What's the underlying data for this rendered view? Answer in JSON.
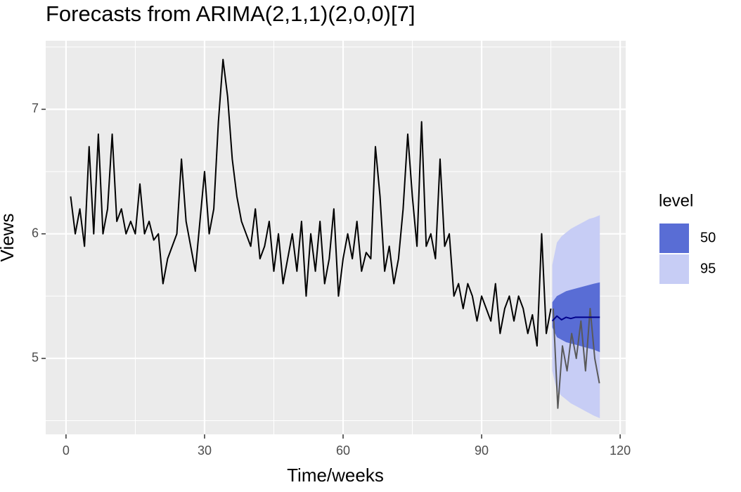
{
  "chart_data": {
    "type": "line",
    "title": "Forecasts from ARIMA(2,1,1)(2,0,0)[7]",
    "x_label": "Time/weeks",
    "y_label": "Views",
    "xlim": [
      -4.4,
      121.2
    ],
    "ylim": [
      4.39,
      7.55
    ],
    "xticks": [
      0,
      30,
      60,
      90,
      120
    ],
    "yticks": [
      5,
      6,
      7
    ],
    "xminor": [
      15,
      45,
      75,
      105
    ],
    "yminor": [
      4.5,
      5.5,
      6.5,
      7.5
    ],
    "grid": true,
    "legend_title": "level",
    "legend_position": "right",
    "bands": [
      {
        "name": "95",
        "color": "#c7cdf5",
        "x": [
          105.3,
          106.3,
          107.3,
          108.3,
          109.3,
          110.3,
          111.3,
          112.3,
          113.3,
          114.3,
          115.6
        ],
        "lower": [
          4.9,
          4.74,
          4.7,
          4.67,
          4.64,
          4.62,
          4.6,
          4.58,
          4.56,
          4.54,
          4.52
        ],
        "upper": [
          5.75,
          5.93,
          5.98,
          6.01,
          6.04,
          6.06,
          6.08,
          6.1,
          6.12,
          6.13,
          6.15
        ]
      },
      {
        "name": "50",
        "color": "#596dd5",
        "x": [
          105.3,
          106.3,
          107.3,
          108.3,
          109.3,
          110.3,
          111.3,
          112.3,
          113.3,
          114.3,
          115.6
        ],
        "lower": [
          5.25,
          5.17,
          5.15,
          5.13,
          5.12,
          5.11,
          5.1,
          5.09,
          5.08,
          5.07,
          5.05
        ],
        "upper": [
          5.45,
          5.5,
          5.52,
          5.54,
          5.55,
          5.56,
          5.57,
          5.58,
          5.59,
          5.6,
          5.61
        ]
      }
    ],
    "series": [
      {
        "color": "#000000",
        "x": [
          1,
          2,
          3,
          4,
          5,
          6,
          7,
          8,
          9,
          10,
          11,
          12,
          13,
          14,
          15,
          16,
          17,
          18,
          19,
          20,
          21,
          22,
          23,
          24,
          25,
          26,
          27,
          28,
          29,
          30,
          31,
          32,
          33,
          34,
          35,
          36,
          37,
          38,
          39,
          40,
          41,
          42,
          43,
          44,
          45,
          46,
          47,
          48,
          49,
          50,
          51,
          52,
          53,
          54,
          55,
          56,
          57,
          58,
          59,
          60,
          61,
          62,
          63,
          64,
          65,
          66,
          67,
          68,
          69,
          70,
          71,
          72,
          73,
          74,
          75,
          76,
          77,
          78,
          79,
          80,
          81,
          82,
          83,
          84,
          85,
          86,
          87,
          88,
          89,
          90,
          91,
          92,
          93,
          94,
          95,
          96,
          97,
          98,
          99,
          100,
          101,
          102,
          103,
          104,
          105
        ],
        "values": [
          6.3,
          6.0,
          6.2,
          5.9,
          6.7,
          6.0,
          6.8,
          6.0,
          6.2,
          6.8,
          6.1,
          6.2,
          6.0,
          6.1,
          6.0,
          6.4,
          6.0,
          6.1,
          5.95,
          6.0,
          5.6,
          5.8,
          5.9,
          6.0,
          6.6,
          6.1,
          5.9,
          5.7,
          6.1,
          6.5,
          6.0,
          6.2,
          6.9,
          7.4,
          7.1,
          6.6,
          6.3,
          6.1,
          6.0,
          5.9,
          6.2,
          5.8,
          5.9,
          6.1,
          5.7,
          6.0,
          5.6,
          5.8,
          6.0,
          5.7,
          6.1,
          5.5,
          6.0,
          5.7,
          6.1,
          5.6,
          5.8,
          6.2,
          5.5,
          5.8,
          6.0,
          5.8,
          6.1,
          5.7,
          5.85,
          5.8,
          6.7,
          6.3,
          5.7,
          5.9,
          5.6,
          5.8,
          6.2,
          6.8,
          6.3,
          5.9,
          6.9,
          5.9,
          6.0,
          5.8,
          6.6,
          5.9,
          6.0,
          5.5,
          5.6,
          5.4,
          5.6,
          5.5,
          5.3,
          5.5,
          5.4,
          5.3,
          5.6,
          5.2,
          5.4,
          5.5,
          5.3,
          5.5,
          5.4,
          5.2,
          5.35,
          5.1,
          6.0,
          5.2,
          5.4
        ]
      },
      {
        "color": "#595959",
        "x": [
          105.5,
          106.5,
          107.5,
          108.5,
          109.5,
          110.5,
          111.5,
          112.5,
          113.5,
          114.5,
          115.5
        ],
        "values": [
          5.4,
          4.6,
          5.1,
          4.9,
          5.2,
          5.0,
          5.3,
          4.9,
          5.4,
          5.0,
          4.8
        ]
      },
      {
        "color": "#00008b",
        "x": [
          105.3,
          106.3,
          107.3,
          108.3,
          109.3,
          110.3,
          111.3,
          112.3,
          113.3,
          114.3,
          115.6
        ],
        "values": [
          5.3,
          5.34,
          5.31,
          5.33,
          5.32,
          5.33,
          5.33,
          5.33,
          5.33,
          5.33,
          5.33
        ]
      }
    ]
  }
}
